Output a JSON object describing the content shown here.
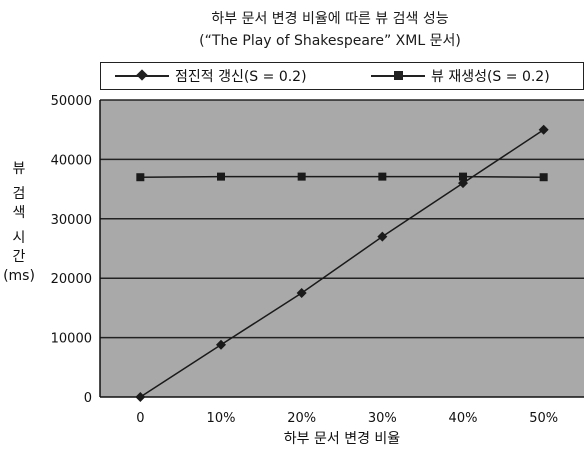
{
  "chart_data": {
    "type": "line",
    "title": "하부 문서 변경 비율에 따른 뷰 검색 성능",
    "subtitle": "(“The Play of Shakespeare” XML 문서)",
    "xlabel": "하부 문서 변경 비율",
    "ylabel": [
      "뷰",
      "검",
      "색",
      "시",
      "간",
      "(ms)"
    ],
    "categories": [
      "0",
      "10%",
      "20%",
      "30%",
      "40%",
      "50%"
    ],
    "yticks": [
      "0",
      "10000",
      "20000",
      "30000",
      "40000",
      "50000"
    ],
    "ylim": [
      0,
      50000
    ],
    "grid": true,
    "legend_position": "top",
    "series": [
      {
        "name": "점진적 갱신(S = 0.2)",
        "marker": "diamond",
        "values": [
          0,
          8800,
          17500,
          27000,
          36000,
          45000
        ]
      },
      {
        "name": "뷰 재생성(S = 0.2)",
        "marker": "square",
        "values": [
          37000,
          37100,
          37100,
          37100,
          37100,
          37000
        ]
      }
    ],
    "colors": {
      "plot_background": "#a9a9a9",
      "line": "#1a1a1a",
      "grid": "#222222"
    }
  }
}
